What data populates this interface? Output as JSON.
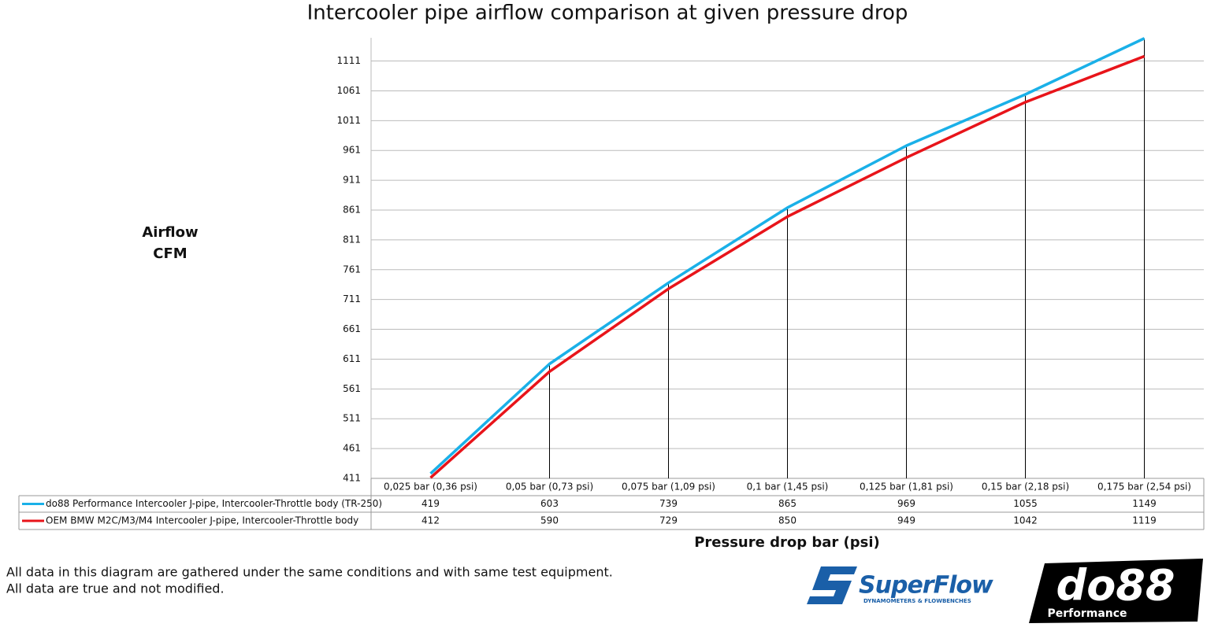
{
  "chart_data": {
    "type": "line",
    "title": "Intercooler pipe airflow comparison at given pressure drop",
    "ylabel": [
      "Airflow",
      "CFM"
    ],
    "xlabel": "Pressure drop bar (psi)",
    "categories": [
      "0,025 bar (0,36 psi)",
      "0,05 bar (0,73 psi)",
      "0,075 bar (1,09 psi)",
      "0,1 bar (1,45 psi)",
      "0,125 bar (1,81 psi)",
      "0,15 bar (2,18 psi)",
      "0,175 bar (2,54 psi)"
    ],
    "series": [
      {
        "name": "do88 Performance Intercooler J-pipe, Intercooler-Throttle body (TR-250)",
        "color": "#1ab0e8",
        "values": [
          419,
          603,
          739,
          865,
          969,
          1055,
          1149
        ]
      },
      {
        "name": "OEM BMW M2C/M3/M4 Intercooler J-pipe, Intercooler-Throttle body",
        "color": "#e8141a",
        "values": [
          412,
          590,
          729,
          850,
          949,
          1042,
          1119
        ]
      }
    ],
    "ylim": [
      411,
      1150
    ],
    "yticks": [
      411,
      461,
      511,
      561,
      611,
      661,
      711,
      761,
      811,
      861,
      911,
      961,
      1011,
      1061,
      1111
    ],
    "grid": true
  },
  "notes": [
    "All data in this diagram are gathered under the same conditions and with same test equipment.",
    "All data are true and not modified."
  ],
  "logos": {
    "superflow": "SuperFlow",
    "superflow_tagline": "DYNAMOMETERS & FLOWBENCHES",
    "do88": "do88",
    "do88_sub": "Performance"
  }
}
